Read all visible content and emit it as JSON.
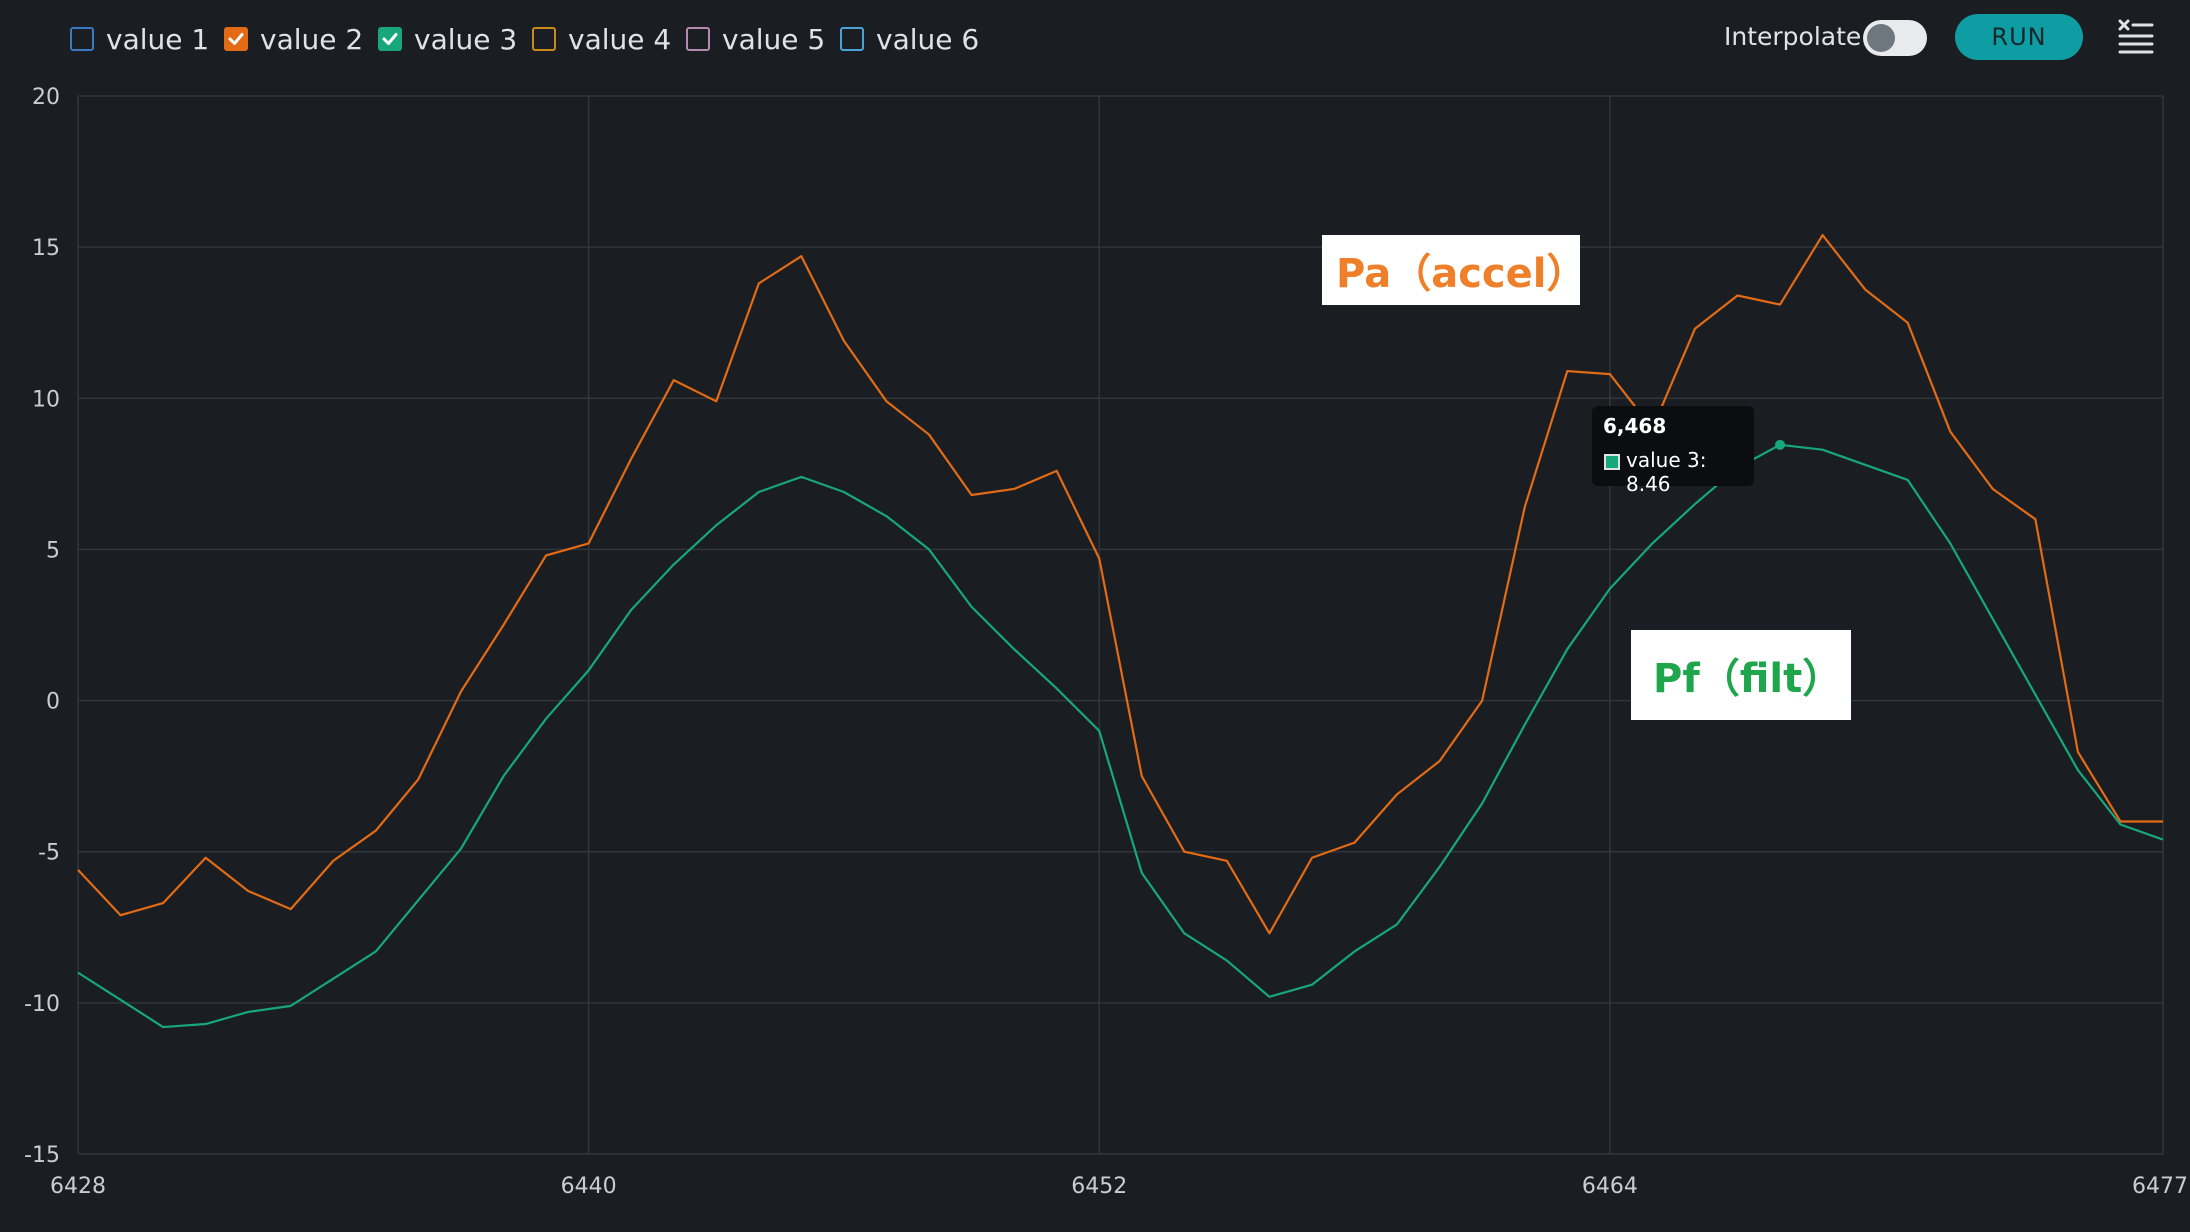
{
  "toolbar": {
    "legend": [
      {
        "label": "value 1",
        "checked": false,
        "color": "#3a78c2"
      },
      {
        "label": "value 2",
        "checked": true,
        "color": "#e36b16"
      },
      {
        "label": "value 3",
        "checked": true,
        "color": "#17a77b"
      },
      {
        "label": "value 4",
        "checked": false,
        "color": "#c98a1a"
      },
      {
        "label": "value 5",
        "checked": false,
        "color": "#b58ab0"
      },
      {
        "label": "value 6",
        "checked": false,
        "color": "#4aa3d8"
      }
    ],
    "interpolate_label": "Interpolate",
    "interpolate_on": false,
    "run_label": "RUN",
    "clear_icon": "clear-list-icon"
  },
  "chart_data": {
    "type": "line",
    "x": [
      6428,
      6429,
      6430,
      6431,
      6432,
      6433,
      6434,
      6435,
      6436,
      6437,
      6438,
      6439,
      6440,
      6441,
      6442,
      6443,
      6444,
      6445,
      6446,
      6447,
      6448,
      6449,
      6450,
      6451,
      6452,
      6453,
      6454,
      6455,
      6456,
      6457,
      6458,
      6459,
      6460,
      6461,
      6462,
      6463,
      6464,
      6465,
      6466,
      6467,
      6468,
      6469,
      6470,
      6471,
      6472,
      6473,
      6474,
      6475,
      6476,
      6477
    ],
    "series": [
      {
        "name": "value 2",
        "color": "#e36b16",
        "values": [
          -5.6,
          -7.1,
          -6.7,
          -5.2,
          -6.3,
          -6.9,
          -5.3,
          -4.3,
          -2.6,
          0.3,
          2.5,
          4.8,
          5.2,
          8.0,
          10.6,
          9.9,
          13.8,
          14.7,
          11.9,
          9.9,
          8.8,
          6.8,
          7.0,
          7.6,
          4.7,
          -2.5,
          -5.0,
          -5.3,
          -7.7,
          -5.2,
          -4.7,
          -3.1,
          -2.0,
          0.0,
          6.4,
          10.9,
          10.8,
          9.0,
          12.3,
          13.4,
          13.1,
          15.4,
          13.6,
          12.5,
          8.9,
          7.0,
          6.0,
          -1.7,
          -4.0,
          -4.0
        ]
      },
      {
        "name": "value 3",
        "color": "#17a77b",
        "values": [
          -9.0,
          -9.9,
          -10.8,
          -10.7,
          -10.3,
          -10.1,
          -9.2,
          -8.3,
          -6.6,
          -4.9,
          -2.5,
          -0.6,
          1.0,
          3.0,
          4.5,
          5.8,
          6.9,
          7.4,
          6.9,
          6.1,
          5.0,
          3.1,
          1.7,
          0.4,
          -1.0,
          -5.7,
          -7.7,
          -8.6,
          -9.8,
          -9.4,
          -8.3,
          -7.4,
          -5.5,
          -3.4,
          -0.8,
          1.7,
          3.7,
          5.2,
          6.5,
          7.7,
          8.46,
          8.3,
          7.8,
          7.3,
          5.2,
          2.7,
          0.2,
          -2.3,
          -4.1,
          -4.6
        ]
      }
    ],
    "ylim": [
      -15,
      20
    ],
    "yticks": [
      "20",
      "15",
      "10",
      "5",
      "0",
      "-5",
      "-10",
      "-15"
    ],
    "xlim": [
      6428,
      6477
    ],
    "xticks": [
      "6428",
      "6440",
      "6452",
      "6464",
      "6477"
    ],
    "grid": true,
    "tooltip": {
      "title": "6,468",
      "label": "value 3: 8.46",
      "x": 6468,
      "y": 8.46
    },
    "annotations": [
      {
        "text": "Pa（accel）",
        "color": "#f07f2a"
      },
      {
        "text": "Pf（filt）",
        "color": "#1fa64c"
      }
    ]
  }
}
